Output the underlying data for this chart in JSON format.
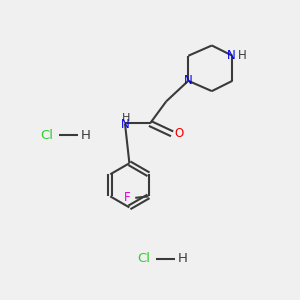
{
  "background_color": "#f0f0f0",
  "bond_color": "#3a3a3a",
  "N_color": "#0000ee",
  "O_color": "#ee0000",
  "F_color": "#dd00dd",
  "Cl_color": "#33cc33",
  "H_color": "#3a3a3a",
  "line_width": 1.5,
  "font_size": 8.5,
  "fig_width": 3.0,
  "fig_height": 3.0,
  "dpi": 100,
  "xlim": [
    0,
    10
  ],
  "ylim": [
    0,
    10
  ]
}
